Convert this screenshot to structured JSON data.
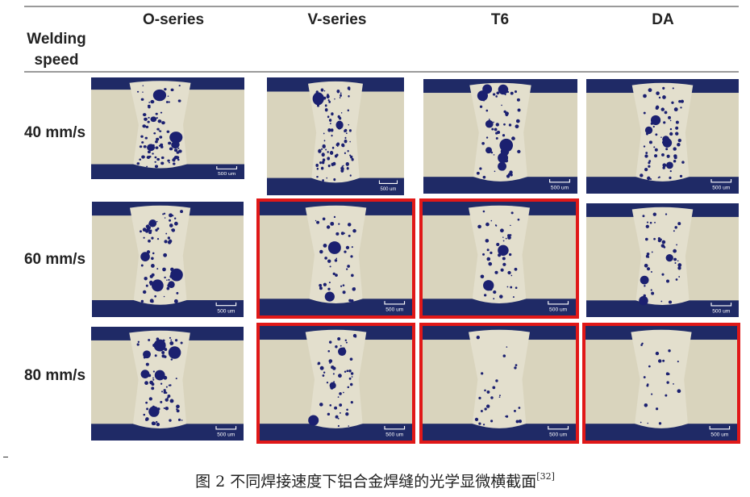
{
  "header": {
    "corner_label_line1": "Welding",
    "corner_label_line2": "speed",
    "columns": [
      "O-series",
      "V-series",
      "T6",
      "DA"
    ]
  },
  "rows": [
    {
      "label": "40 mm/s",
      "highlighted": [
        false,
        false,
        false,
        false
      ]
    },
    {
      "label": "60 mm/s",
      "highlighted": [
        false,
        true,
        true,
        false
      ]
    },
    {
      "label": "80 mm/s",
      "highlighted": [
        false,
        true,
        true,
        true
      ]
    }
  ],
  "scale_bar_label": "500 um",
  "colors": {
    "highlight": "#e01818",
    "mount": "#1f2a66",
    "metal": "#d9d4bd",
    "pore": "#1b2070"
  },
  "caption": {
    "text": "图 2   不同焊接速度下铝合金焊缝的光学显微横截面",
    "ref": "[32]"
  }
}
